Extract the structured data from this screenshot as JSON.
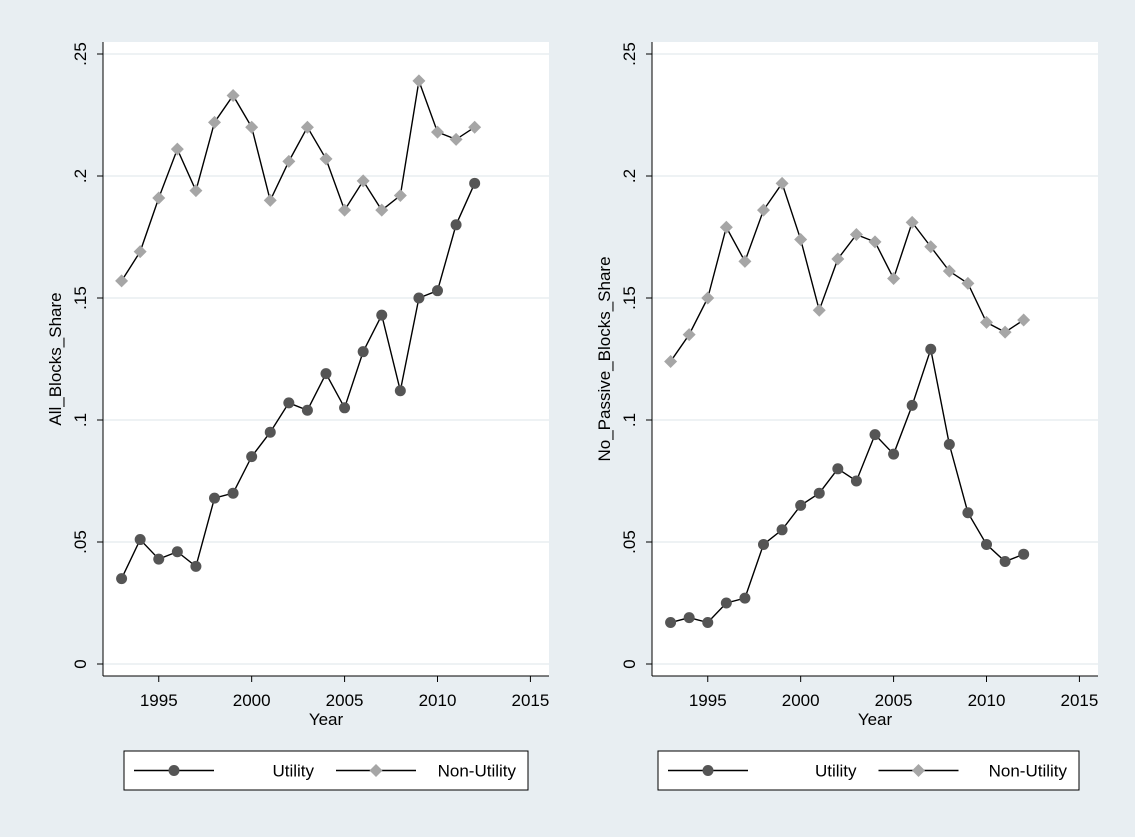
{
  "colors": {
    "background": "#e8eef2",
    "plot_background": "#ffffff",
    "grid": "#e4eaee",
    "line": "#000000",
    "utility_marker": "#555555",
    "non_utility_marker": "#a6a6a6"
  },
  "chart_data": [
    {
      "type": "line",
      "title": "",
      "xlabel": "Year",
      "ylabel": "All_Blocks_Share",
      "xlim": [
        1992,
        2016
      ],
      "ylim": [
        0,
        0.25
      ],
      "xticks": [
        1995,
        2000,
        2005,
        2010,
        2015
      ],
      "yticks": [
        0,
        0.05,
        0.1,
        0.15,
        0.2,
        0.25
      ],
      "yticklabels": [
        "0",
        ".05",
        ".1",
        ".15",
        ".2",
        ".25"
      ],
      "grid": true,
      "legend_position": "bottom",
      "x": [
        1993,
        1994,
        1995,
        1996,
        1997,
        1998,
        1999,
        2000,
        2001,
        2002,
        2003,
        2004,
        2005,
        2006,
        2007,
        2008,
        2009,
        2010,
        2011,
        2012
      ],
      "series": [
        {
          "name": "Utility",
          "marker": "circle",
          "values": [
            0.035,
            0.051,
            0.043,
            0.046,
            0.04,
            0.068,
            0.07,
            0.085,
            0.095,
            0.107,
            0.104,
            0.119,
            0.105,
            0.128,
            0.143,
            0.112,
            0.15,
            0.153,
            0.18,
            0.197
          ]
        },
        {
          "name": "Non-Utility",
          "marker": "diamond",
          "values": [
            0.157,
            0.169,
            0.191,
            0.211,
            0.194,
            0.222,
            0.233,
            0.22,
            0.19,
            0.206,
            0.22,
            0.207,
            0.186,
            0.198,
            0.186,
            0.192,
            0.239,
            0.218,
            0.215,
            0.22
          ]
        }
      ]
    },
    {
      "type": "line",
      "title": "",
      "xlabel": "Year",
      "ylabel": "No_Passive_Blocks_Share",
      "xlim": [
        1992,
        2016
      ],
      "ylim": [
        0,
        0.25
      ],
      "xticks": [
        1995,
        2000,
        2005,
        2010,
        2015
      ],
      "yticks": [
        0,
        0.05,
        0.1,
        0.15,
        0.2,
        0.25
      ],
      "yticklabels": [
        "0",
        ".05",
        ".1",
        ".15",
        ".2",
        ".25"
      ],
      "grid": true,
      "legend_position": "bottom",
      "x": [
        1993,
        1994,
        1995,
        1996,
        1997,
        1998,
        1999,
        2000,
        2001,
        2002,
        2003,
        2004,
        2005,
        2006,
        2007,
        2008,
        2009,
        2010,
        2011,
        2012
      ],
      "series": [
        {
          "name": "Utility",
          "marker": "circle",
          "values": [
            0.017,
            0.019,
            0.017,
            0.025,
            0.027,
            0.049,
            0.055,
            0.065,
            0.07,
            0.08,
            0.075,
            0.094,
            0.086,
            0.106,
            0.129,
            0.09,
            0.062,
            0.049,
            0.042,
            0.045
          ]
        },
        {
          "name": "Non-Utility",
          "marker": "diamond",
          "values": [
            0.124,
            0.135,
            0.15,
            0.179,
            0.165,
            0.186,
            0.197,
            0.174,
            0.145,
            0.166,
            0.176,
            0.173,
            0.158,
            0.181,
            0.171,
            0.161,
            0.156,
            0.14,
            0.136,
            0.141
          ]
        }
      ]
    }
  ]
}
